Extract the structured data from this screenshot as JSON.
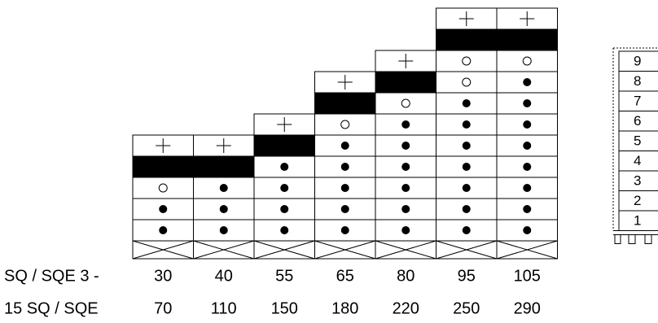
{
  "row_labels": [
    "SQ / SQE 3 -",
    "15 SQ / SQE"
  ],
  "columns": [
    {
      "top": 30,
      "bottom": 70
    },
    {
      "top": 40,
      "bottom": 110
    },
    {
      "top": 55,
      "bottom": 150
    },
    {
      "top": 65,
      "bottom": 180
    },
    {
      "top": 80,
      "bottom": 220
    },
    {
      "top": 95,
      "bottom": 250
    },
    {
      "top": 105,
      "bottom": 290
    }
  ],
  "levels": [
    9,
    8,
    7,
    6,
    5,
    4,
    3,
    2,
    1
  ]
}
